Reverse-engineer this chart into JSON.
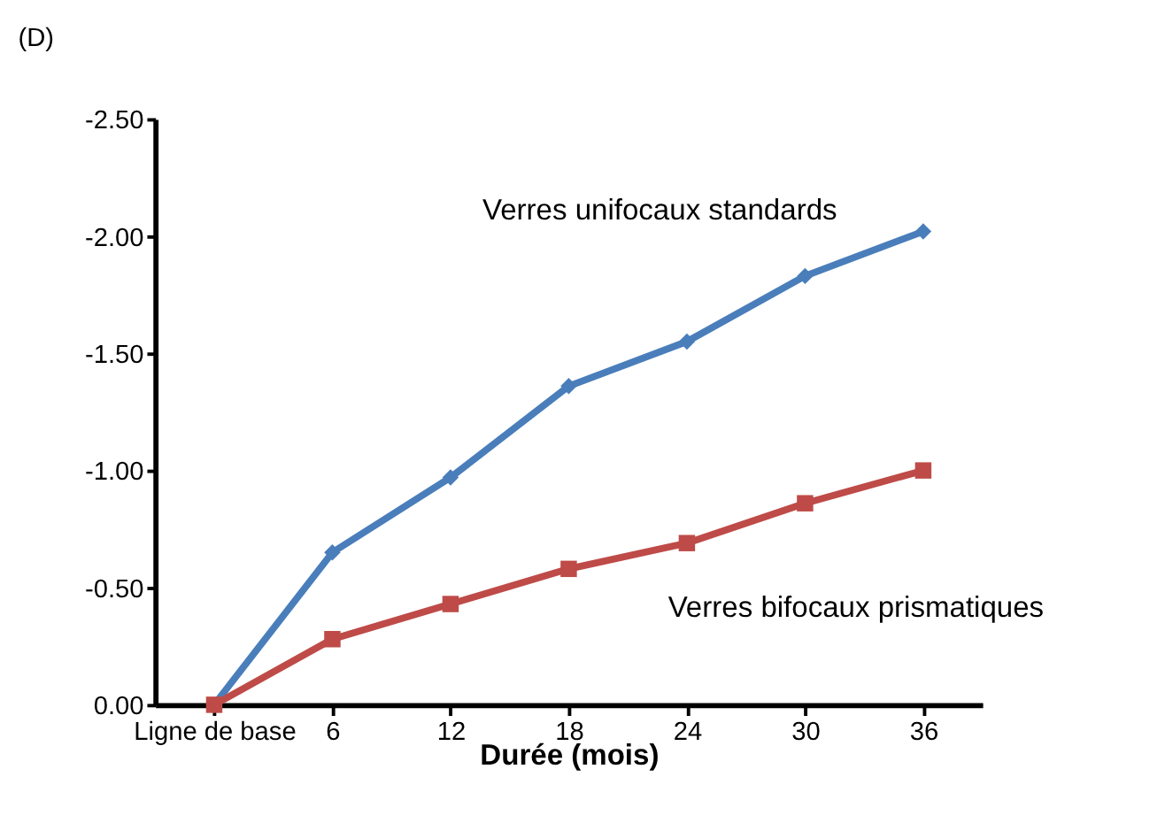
{
  "chart_data": {
    "type": "line",
    "ylabel": "(D)",
    "xlabel": "Durée (mois)",
    "categories": [
      "Ligne de base",
      "6",
      "12",
      "18",
      "24",
      "30",
      "36"
    ],
    "series": [
      {
        "name": "Verres unifocaux standards",
        "color": "#4a7ebb",
        "marker": "diamond",
        "values": [
          0,
          -0.65,
          -0.97,
          -1.36,
          -1.55,
          -1.83,
          -2.02
        ]
      },
      {
        "name": "Verres bifocaux prismatiques",
        "color": "#be4b48",
        "marker": "square",
        "values": [
          0,
          -0.28,
          -0.43,
          -0.58,
          -0.69,
          -0.86,
          -1.0
        ]
      }
    ],
    "ylim": [
      0,
      -2.5
    ],
    "yticks": [
      {
        "value": 0,
        "label": "0.00"
      },
      {
        "value": -0.5,
        "label": "-0.50"
      },
      {
        "value": -1.0,
        "label": "-1.00"
      },
      {
        "value": -1.5,
        "label": "-1.50"
      },
      {
        "value": -2.0,
        "label": "-2.00"
      },
      {
        "value": -2.5,
        "label": "-2.50"
      }
    ],
    "grid": false,
    "line_style": "solid"
  }
}
